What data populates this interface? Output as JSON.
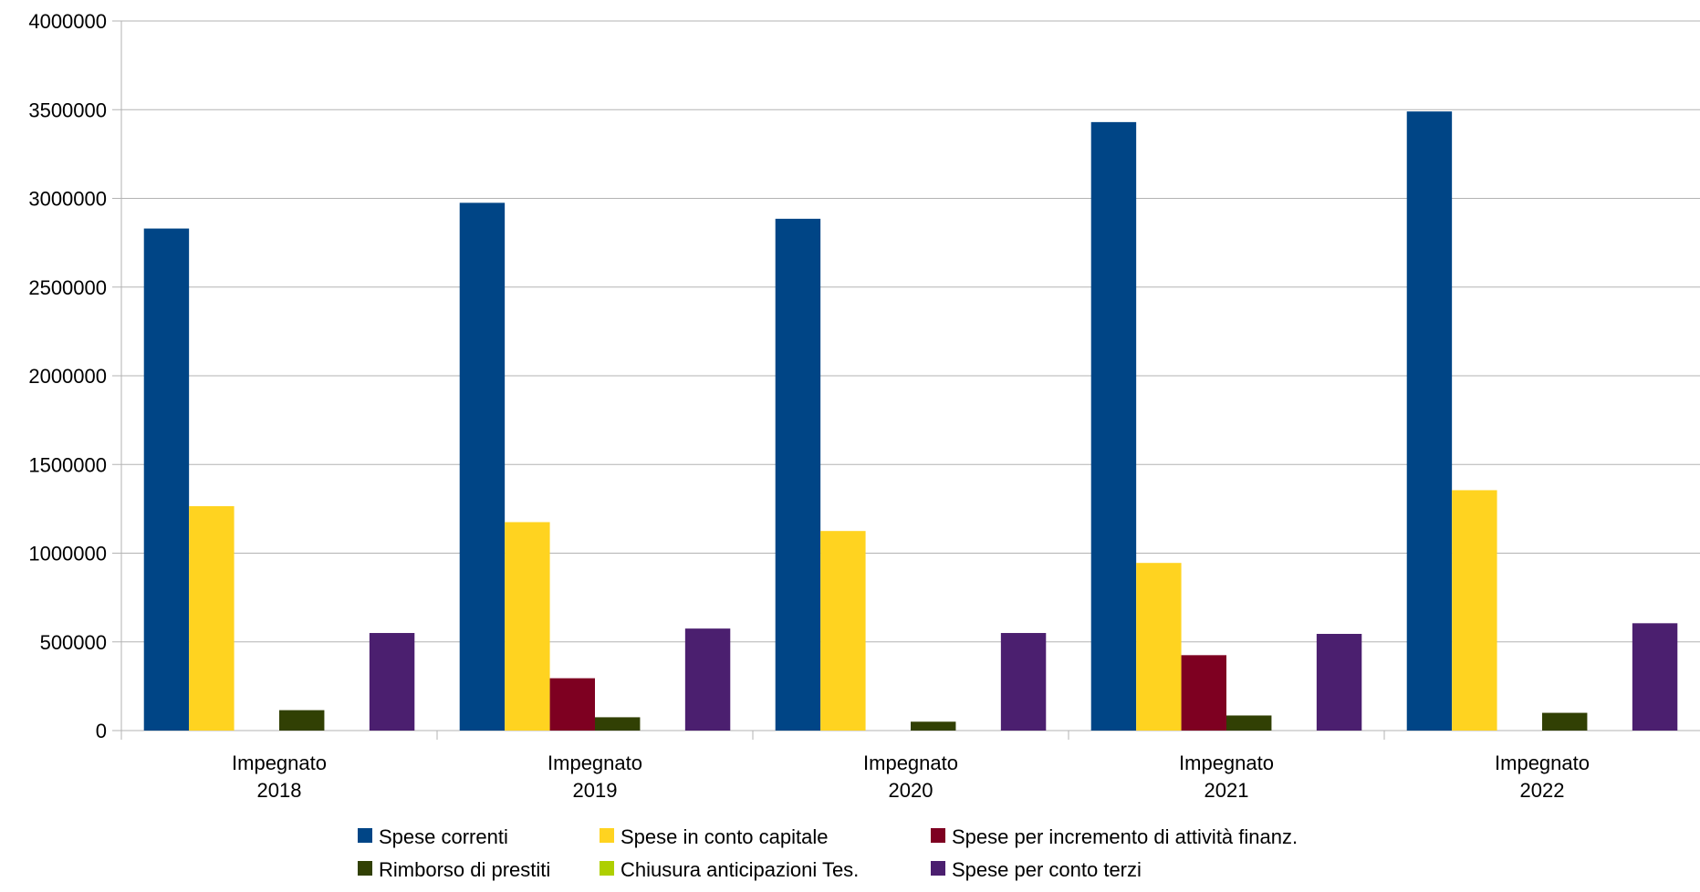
{
  "chart_data": {
    "type": "bar",
    "categories": [
      [
        "Impegnato",
        "2018"
      ],
      [
        "Impegnato",
        "2019"
      ],
      [
        "Impegnato",
        "2020"
      ],
      [
        "Impegnato",
        "2021"
      ],
      [
        "Impegnato",
        "2022"
      ]
    ],
    "series": [
      {
        "name": "Spese correnti",
        "color": "#004586",
        "values": [
          2830000,
          2975000,
          2885000,
          3430000,
          3490000
        ]
      },
      {
        "name": "Spese in conto capitale",
        "color": "#ffd320",
        "values": [
          1265000,
          1175000,
          1125000,
          945000,
          1355000
        ]
      },
      {
        "name": "Spese per incremento di attività finanz.",
        "color": "#7e0021",
        "values": [
          0,
          295000,
          0,
          425000,
          0
        ]
      },
      {
        "name": "Rimborso di prestiti",
        "color": "#314004",
        "values": [
          115000,
          75000,
          50000,
          85000,
          100000
        ]
      },
      {
        "name": "Chiusura anticipazioni Tes.",
        "color": "#aecf00",
        "values": [
          0,
          0,
          0,
          0,
          0
        ]
      },
      {
        "name": "Spese per conto terzi",
        "color": "#4b1f6f",
        "values": [
          550000,
          575000,
          550000,
          545000,
          605000
        ]
      }
    ],
    "yticks": [
      "0",
      "500000",
      "1000000",
      "1500000",
      "2000000",
      "2500000",
      "3000000",
      "3500000",
      "4000000"
    ],
    "ylim": [
      0,
      4000000
    ],
    "grid": true,
    "legend_position": "bottom",
    "title": "",
    "xlabel": "",
    "ylabel": ""
  }
}
